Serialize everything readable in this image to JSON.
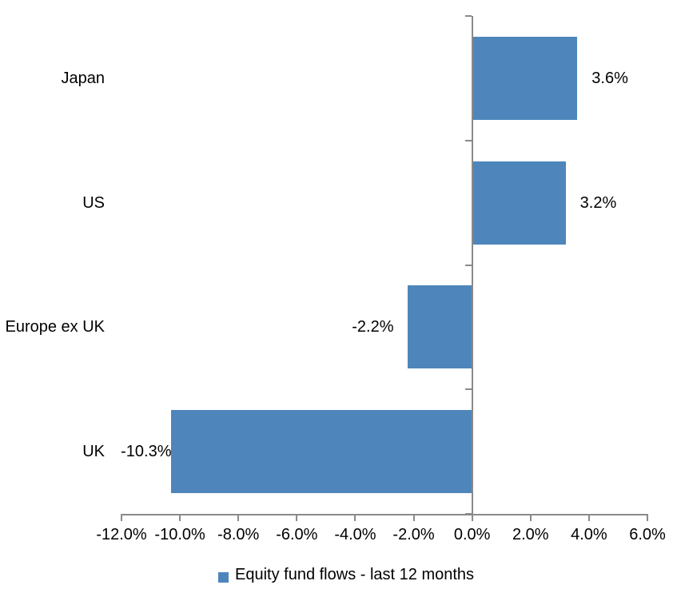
{
  "chart_data": {
    "type": "bar",
    "orientation": "horizontal",
    "title": "",
    "categories": [
      "Japan",
      "US",
      "Europe ex UK",
      "UK"
    ],
    "series": [
      {
        "name": "Equity fund flows - last 12 months",
        "values": [
          3.6,
          3.2,
          -2.2,
          -10.3
        ]
      }
    ],
    "data_labels": [
      "3.6%",
      "3.2%",
      "-2.2%",
      "-10.3%"
    ],
    "xlim": [
      -12,
      6
    ],
    "x_ticks": [
      -12,
      -10,
      -8,
      -6,
      -4,
      -2,
      0,
      2,
      4,
      6
    ],
    "x_tick_labels": [
      "-12.0%",
      "-10.0%",
      "-8.0%",
      "-6.0%",
      "-4.0%",
      "-2.0%",
      "0.0%",
      "2.0%",
      "4.0%",
      "6.0%"
    ],
    "grid": "off",
    "legend_position": "bottom",
    "colors": {
      "bar": "#4e86bb",
      "axis": "#8a8a8a",
      "text": "#000000",
      "background": "#ffffff"
    }
  },
  "legend": {
    "swatch_color": "#4e86bb",
    "label": "Equity fund flows - last 12 months"
  }
}
